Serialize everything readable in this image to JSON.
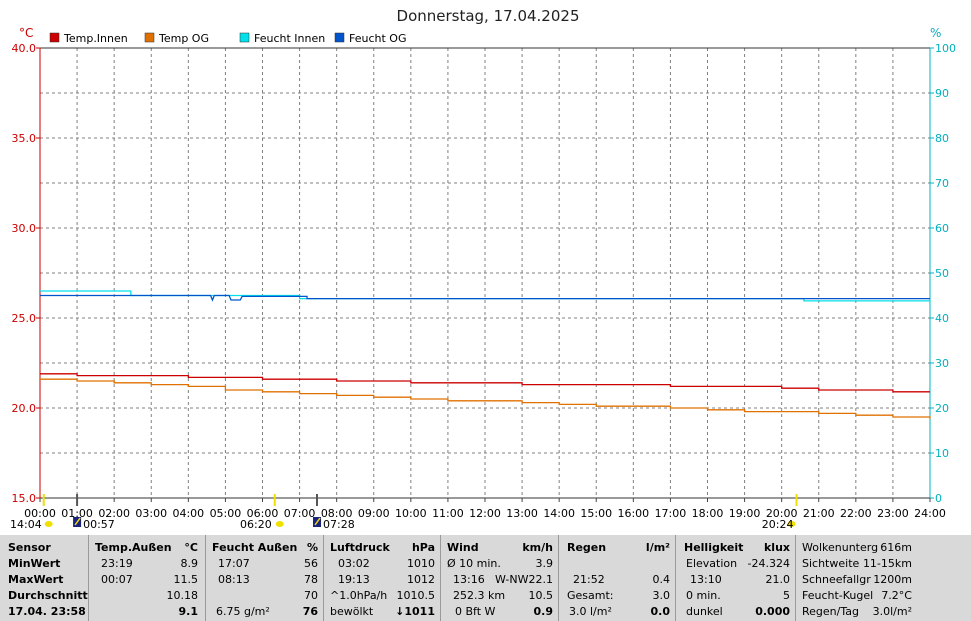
{
  "chart_data": {
    "type": "line",
    "title": "Donnerstag, 17.04.2025",
    "y_left_unit": "°C",
    "y_right_unit": "%",
    "ylim_left": [
      15,
      40
    ],
    "ylim_right": [
      0,
      100
    ],
    "y_left_ticks": [
      "15.0",
      "20.0",
      "25.0",
      "30.0",
      "35.0",
      "40.0"
    ],
    "y_right_ticks": [
      "0",
      "10",
      "20",
      "30",
      "40",
      "50",
      "60",
      "70",
      "80",
      "90",
      "100"
    ],
    "x_ticks": [
      "00:00",
      "01:00",
      "02:00",
      "03:00",
      "04:00",
      "05:00",
      "06:00",
      "07:00",
      "08:00",
      "09:00",
      "10:00",
      "11:00",
      "12:00",
      "13:00",
      "14:00",
      "15:00",
      "16:00",
      "17:00",
      "18:00",
      "19:00",
      "20:00",
      "21:00",
      "22:00",
      "23:00",
      "24:00"
    ],
    "grid": true,
    "legend_position": "top-left",
    "series": [
      {
        "name": "Temp.Innen",
        "color": "#cc0000",
        "axis": "left",
        "x": [
          0,
          1,
          2,
          4,
          5,
          6,
          7,
          8,
          9,
          10,
          11,
          12,
          13,
          14,
          15,
          16,
          17,
          18,
          19,
          20,
          21,
          22,
          23,
          24
        ],
        "y": [
          21.9,
          21.8,
          21.8,
          21.7,
          21.7,
          21.6,
          21.6,
          21.5,
          21.5,
          21.4,
          21.4,
          21.4,
          21.3,
          21.3,
          21.3,
          21.3,
          21.2,
          21.2,
          21.2,
          21.1,
          21.0,
          21.0,
          20.9,
          20.9
        ]
      },
      {
        "name": "Temp OG",
        "color": "#e07000",
        "axis": "left",
        "x": [
          0,
          1,
          2,
          3,
          4,
          5,
          6,
          7,
          8,
          9,
          10,
          11,
          12,
          13,
          14,
          15,
          16,
          17,
          18,
          19,
          20,
          21,
          22,
          23,
          24
        ],
        "y": [
          21.6,
          21.5,
          21.4,
          21.3,
          21.2,
          21.0,
          20.9,
          20.8,
          20.7,
          20.6,
          20.5,
          20.4,
          20.4,
          20.3,
          20.2,
          20.1,
          20.1,
          20.0,
          19.9,
          19.8,
          19.8,
          19.7,
          19.6,
          19.5,
          19.4
        ]
      },
      {
        "name": "Feucht Innen",
        "color": "#00e0e8",
        "axis": "right",
        "x": [
          0,
          2.45,
          2.45,
          7,
          7,
          20.6,
          20.6,
          24
        ],
        "y": [
          46.0,
          46.0,
          45.0,
          45.0,
          44.3,
          44.3,
          43.8,
          43.8
        ]
      },
      {
        "name": "Feucht OG",
        "color": "#0055cc",
        "axis": "right",
        "x": [
          0,
          4.6,
          4.65,
          4.7,
          5.1,
          5.15,
          5.4,
          5.45,
          7.2,
          7.2,
          24
        ],
        "y": [
          45.0,
          45.0,
          44.0,
          45.0,
          45.0,
          44.0,
          44.0,
          44.8,
          44.8,
          44.3,
          44.3
        ]
      }
    ],
    "markers": {
      "sunrise_moon": [
        {
          "label": "14:04",
          "hour": 0.1,
          "icon": "sun-icon"
        },
        {
          "label": "00:57",
          "hour": 1.0,
          "icon": "moon-icon"
        },
        {
          "label": "06:20",
          "hour": 6.33,
          "icon": "sun-icon"
        },
        {
          "label": "07:28",
          "hour": 7.47,
          "icon": "moon-icon"
        },
        {
          "label": "20:24",
          "hour": 20.4,
          "icon": "sun-icon"
        }
      ]
    }
  },
  "table": {
    "sensor": {
      "h": "Sensor",
      "min": "MinWert",
      "max": "MaxWert",
      "avg": "Durchschnitt",
      "now": "17.04. 23:58"
    },
    "temp": {
      "h": "Temp.Außen",
      "unit": "°C",
      "min_t": "23:19",
      "min_v": "8.9",
      "max_t": "00:07",
      "max_v": "11.5",
      "avg_v": "10.18",
      "now_v": "9.1"
    },
    "feucht": {
      "h": "Feucht Außen",
      "unit": "%",
      "min_t": "17:07",
      "min_v": "56",
      "max_t": "08:13",
      "max_v": "78",
      "avg_v": "70",
      "abs": "6.75 g/m²",
      "now_v": "76"
    },
    "luft": {
      "h": "Luftdruck",
      "unit": "hPa",
      "min_t": "03:02",
      "min_v": "1010",
      "max_t": "19:13",
      "max_v": "1012",
      "trend_l": "^1.0hPa/h",
      "trend_v": "1010.5",
      "sky": "bewölkt",
      "now_v": "↓1011"
    },
    "wind": {
      "h": "Wind",
      "unit": "km/h",
      "r1_l": "Ø 10 min.",
      "r1_v": "3.9",
      "r2_t": "13:16",
      "r2_d": "W-NW",
      "r2_v": "22.1",
      "r3_l": "252.3 km",
      "r3_v": "10.5",
      "r4_l": "0 Bft W",
      "r4_v": "0.9"
    },
    "regen": {
      "h": "Regen",
      "unit": "l/m²",
      "r2_t": "21:52",
      "r2_v": "0.4",
      "r3_l": "Gesamt:",
      "r3_v": "3.0",
      "r4_l": "3.0 l/m²",
      "r4_v": "0.0"
    },
    "hell": {
      "h": "Helligkeit",
      "unit": "klux",
      "r1_l": "Elevation",
      "r1_v": "-24.324",
      "r2_t": "13:10",
      "r2_v": "21.0",
      "r3_l": "0 min.",
      "r3_v": "5",
      "r4_l": "dunkel",
      "r4_v": "0.000"
    },
    "extra": {
      "r0_l": "Wolkenunterg",
      "r0_v": "616m",
      "r1_l": "Sichtweite",
      "r1_v": "11-15km",
      "r2_l": "Schneefallgr",
      "r2_v": "1200m",
      "r3_l": "Feucht-Kugel",
      "r3_v": "7.2°C",
      "r4_l": "Regen/Tag",
      "r4_v": "3.0l/m²"
    }
  }
}
